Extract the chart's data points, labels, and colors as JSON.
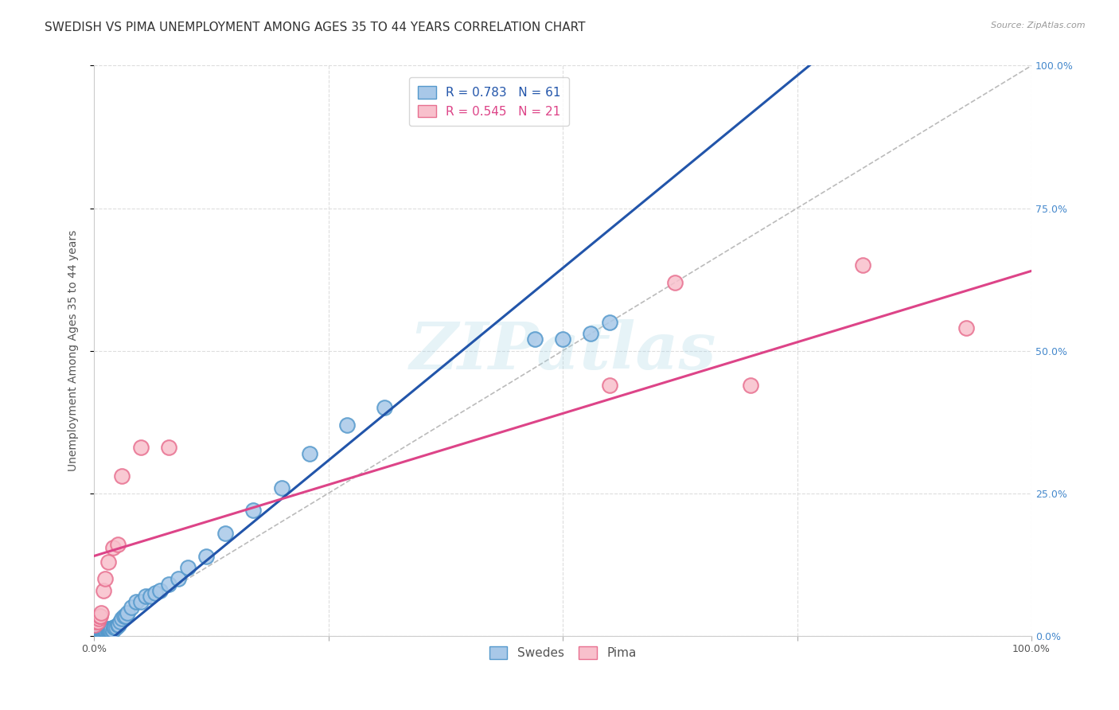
{
  "title": "SWEDISH VS PIMA UNEMPLOYMENT AMONG AGES 35 TO 44 YEARS CORRELATION CHART",
  "source": "Source: ZipAtlas.com",
  "ylabel": "Unemployment Among Ages 35 to 44 years",
  "xlim": [
    0,
    1
  ],
  "ylim": [
    0,
    1
  ],
  "xtick_vals": [
    0.0,
    0.25,
    0.5,
    0.75,
    1.0
  ],
  "xtick_labels_show": [
    "0.0%",
    "",
    "",
    "",
    "100.0%"
  ],
  "ytick_vals": [
    0.0,
    0.25,
    0.5,
    0.75,
    1.0
  ],
  "ytick_labels_right": [
    "0.0%",
    "25.0%",
    "50.0%",
    "75.0%",
    "100.0%"
  ],
  "swedes_color": "#a8c8e8",
  "swedes_edge_color": "#5599cc",
  "pima_color": "#f8c0cc",
  "pima_edge_color": "#e87090",
  "swedes_line_color": "#2255aa",
  "pima_line_color": "#dd4488",
  "diag_line_color": "#bbbbbb",
  "legend_swedes_R": "0.783",
  "legend_swedes_N": "61",
  "legend_pima_R": "0.545",
  "legend_pima_N": "21",
  "swedes_x": [
    0.001,
    0.002,
    0.003,
    0.003,
    0.004,
    0.004,
    0.005,
    0.005,
    0.006,
    0.006,
    0.007,
    0.007,
    0.008,
    0.008,
    0.009,
    0.009,
    0.01,
    0.01,
    0.011,
    0.012,
    0.012,
    0.013,
    0.014,
    0.015,
    0.015,
    0.016,
    0.017,
    0.018,
    0.019,
    0.02,
    0.021,
    0.022,
    0.024,
    0.025,
    0.026,
    0.028,
    0.03,
    0.032,
    0.034,
    0.036,
    0.04,
    0.045,
    0.05,
    0.055,
    0.06,
    0.065,
    0.07,
    0.08,
    0.09,
    0.1,
    0.12,
    0.14,
    0.17,
    0.2,
    0.23,
    0.27,
    0.31,
    0.47,
    0.5,
    0.53,
    0.55
  ],
  "swedes_y": [
    0.005,
    0.005,
    0.005,
    0.008,
    0.005,
    0.008,
    0.005,
    0.008,
    0.005,
    0.01,
    0.005,
    0.01,
    0.005,
    0.01,
    0.005,
    0.01,
    0.005,
    0.01,
    0.01,
    0.01,
    0.012,
    0.01,
    0.01,
    0.01,
    0.012,
    0.012,
    0.01,
    0.01,
    0.012,
    0.01,
    0.015,
    0.015,
    0.015,
    0.02,
    0.02,
    0.025,
    0.03,
    0.035,
    0.035,
    0.04,
    0.05,
    0.06,
    0.06,
    0.07,
    0.07,
    0.075,
    0.08,
    0.09,
    0.1,
    0.12,
    0.14,
    0.18,
    0.22,
    0.26,
    0.32,
    0.37,
    0.4,
    0.52,
    0.52,
    0.53,
    0.55
  ],
  "pima_x": [
    0.001,
    0.002,
    0.003,
    0.004,
    0.005,
    0.006,
    0.007,
    0.008,
    0.01,
    0.012,
    0.015,
    0.02,
    0.025,
    0.03,
    0.05,
    0.08,
    0.55,
    0.62,
    0.7,
    0.82,
    0.93
  ],
  "pima_y": [
    0.02,
    0.025,
    0.03,
    0.025,
    0.03,
    0.035,
    0.035,
    0.04,
    0.08,
    0.1,
    0.13,
    0.155,
    0.16,
    0.28,
    0.33,
    0.33,
    0.44,
    0.62,
    0.44,
    0.65,
    0.54
  ],
  "background_color": "#ffffff",
  "watermark_text": "ZIPatlas",
  "title_fontsize": 11,
  "axis_label_fontsize": 10,
  "tick_fontsize": 9,
  "legend_fontsize": 11,
  "grid_color": "#dddddd",
  "grid_linestyle": "--"
}
